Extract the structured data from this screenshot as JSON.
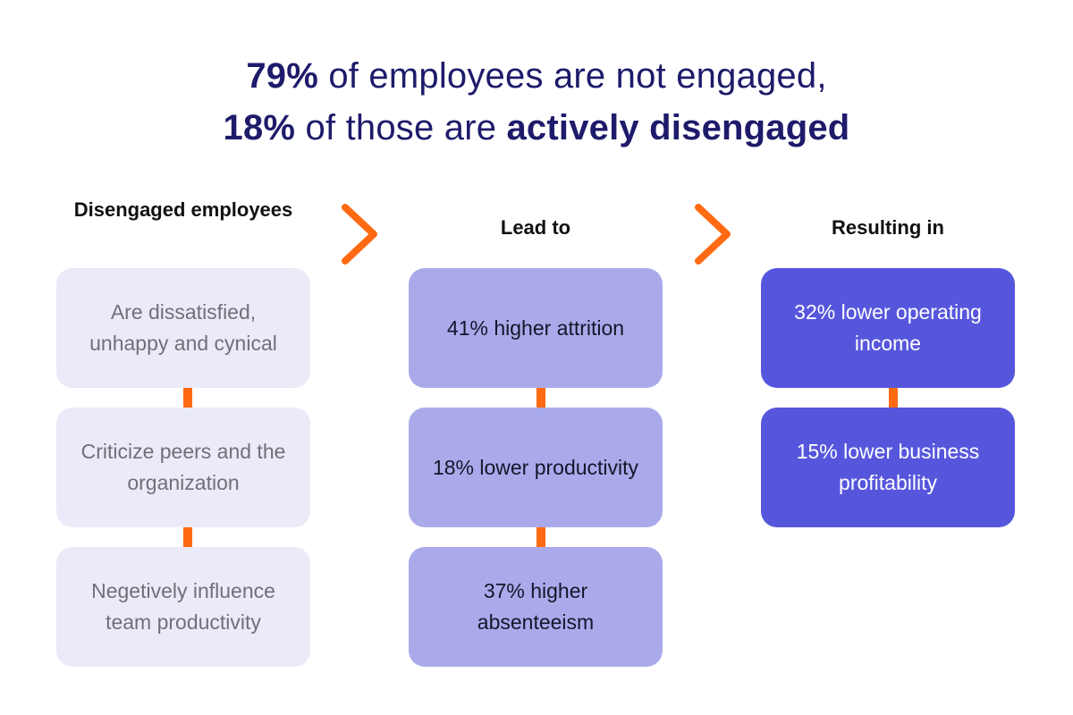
{
  "headline": {
    "line1_strong": "79%",
    "line1_rest": " of employees are not engaged,",
    "line2_strong": "18%",
    "line2_middle": " of those are ",
    "line2_emph": "actively disengaged"
  },
  "columns": [
    {
      "title": "Disengaged employees",
      "items": [
        "Are dissatisfied, unhappy and cynical",
        "Criticize peers and the organization",
        "Negetively influence team productivity"
      ]
    },
    {
      "title": "Lead to",
      "items": [
        "41% higher attrition",
        "18% lower productivity",
        "37% higher absenteeism"
      ]
    },
    {
      "title": "Resulting in",
      "items": [
        "32% lower operating income",
        "15% lower business profitability"
      ]
    }
  ],
  "colors": {
    "headline": "#1e1b6b",
    "highlight": "#fdf0ea",
    "accent": "#ff6a13",
    "col1_box": "#ebeaf8",
    "col2_box": "#aaaaeb",
    "col3_box": "#5656dd"
  },
  "icons": {
    "arrow": "chevron-right-icon"
  }
}
